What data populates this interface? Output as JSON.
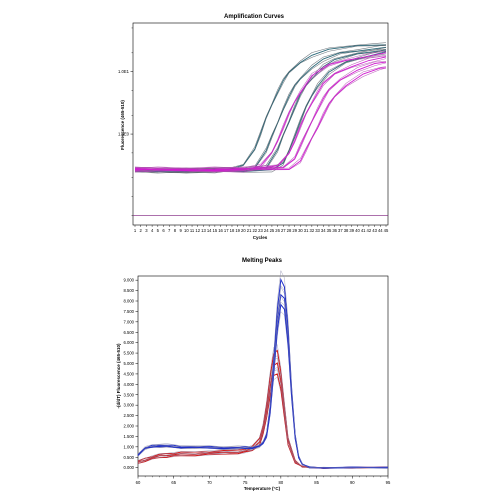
{
  "chart_data": [
    {
      "type": "line",
      "title": "Amplification Curves",
      "xlabel": "Cycles",
      "ylabel": "Fluorescence (465-510)",
      "y_scale": "log",
      "x_tick_labels": [
        "1",
        "2",
        "3",
        "4",
        "5",
        "6",
        "7",
        "8",
        "9",
        "10",
        "11",
        "12",
        "13",
        "14",
        "15",
        "16",
        "17",
        "18",
        "19",
        "20",
        "21",
        "22",
        "23",
        "24",
        "25",
        "26",
        "27",
        "28",
        "29",
        "30",
        "31",
        "32",
        "33",
        "34",
        "35",
        "36",
        "37",
        "38",
        "39",
        "40",
        "41",
        "42",
        "43",
        "44",
        "45"
      ],
      "y_tick_labels": [
        "1.0E1",
        "1.0E0"
      ],
      "threshold": 0.05,
      "series_color_teal": "#2e6a7a",
      "series_color_magenta": "#d21ad2",
      "series_color_grey": "#444444",
      "series": [
        {
          "group": "teal",
          "x": [
            1,
            5,
            10,
            15,
            18,
            20,
            22,
            23,
            24,
            25,
            26,
            27,
            28,
            30,
            32,
            35,
            40,
            45
          ],
          "y": [
            0.26,
            0.26,
            0.26,
            0.26,
            0.27,
            0.32,
            0.6,
            1.0,
            1.8,
            3.0,
            4.8,
            7.0,
            9.6,
            14.5,
            18.5,
            22,
            26,
            28
          ]
        },
        {
          "group": "teal",
          "x": [
            1,
            5,
            10,
            15,
            20,
            22,
            24,
            25,
            26,
            27,
            28,
            29,
            30,
            32,
            34,
            37,
            40,
            45
          ],
          "y": [
            0.26,
            0.26,
            0.26,
            0.26,
            0.27,
            0.3,
            0.55,
            0.9,
            1.5,
            2.6,
            4.0,
            5.8,
            7.8,
            12,
            15.5,
            19.5,
            22,
            25
          ]
        },
        {
          "group": "teal",
          "x": [
            1,
            5,
            10,
            15,
            20,
            24,
            26,
            27,
            28,
            29,
            30,
            31,
            32,
            34,
            36,
            40,
            45
          ],
          "y": [
            0.26,
            0.26,
            0.26,
            0.26,
            0.26,
            0.3,
            0.55,
            0.95,
            1.6,
            2.7,
            4.2,
            6.0,
            8.0,
            12,
            15,
            19.5,
            23
          ]
        },
        {
          "group": "teal",
          "x": [
            1,
            5,
            10,
            15,
            20,
            25,
            27,
            28,
            29,
            30,
            31,
            32,
            33,
            35,
            38,
            41,
            45
          ],
          "y": [
            0.26,
            0.26,
            0.26,
            0.26,
            0.26,
            0.27,
            0.33,
            0.55,
            0.95,
            1.6,
            2.7,
            4.2,
            6.0,
            9.5,
            14,
            17.5,
            21
          ]
        },
        {
          "group": "magenta",
          "x": [
            1,
            5,
            10,
            15,
            20,
            23,
            25,
            26,
            27,
            28,
            29,
            30,
            32,
            35,
            38,
            41,
            45
          ],
          "y": [
            0.27,
            0.27,
            0.27,
            0.26,
            0.27,
            0.3,
            0.5,
            0.8,
            1.3,
            2.1,
            3.3,
            4.8,
            8.5,
            12.5,
            15.5,
            17.5,
            19.5
          ]
        },
        {
          "group": "magenta",
          "x": [
            1,
            5,
            10,
            15,
            20,
            26,
            28,
            29,
            30,
            31,
            32,
            33,
            34,
            36,
            39,
            42,
            45
          ],
          "y": [
            0.27,
            0.27,
            0.27,
            0.27,
            0.27,
            0.3,
            0.5,
            0.8,
            1.3,
            2.1,
            3.2,
            4.6,
            6.2,
            9.2,
            12.5,
            15,
            16.5
          ]
        },
        {
          "group": "magenta",
          "x": [
            1,
            5,
            10,
            15,
            20,
            27,
            29,
            30,
            31,
            32,
            33,
            34,
            35,
            37,
            40,
            43,
            45
          ],
          "y": [
            0.27,
            0.27,
            0.27,
            0.27,
            0.27,
            0.29,
            0.42,
            0.65,
            1.0,
            1.6,
            2.5,
            3.6,
            5.0,
            7.6,
            10.8,
            13,
            14
          ]
        },
        {
          "group": "magenta",
          "x": [
            1,
            5,
            10,
            15,
            20,
            28,
            30,
            31,
            32,
            33,
            34,
            35,
            36,
            38,
            41,
            44,
            45
          ],
          "y": [
            0.27,
            0.27,
            0.27,
            0.27,
            0.27,
            0.28,
            0.38,
            0.55,
            0.85,
            1.3,
            2.0,
            2.9,
            4.0,
            6.2,
            9.0,
            11,
            11.8
          ]
        }
      ]
    },
    {
      "type": "line",
      "title": "Melting Peaks",
      "xlabel": "Temperature (°C)",
      "ylabel": "-(d/dT) Fluorescence (465-510)",
      "x_tick_labels": [
        "60",
        "65",
        "70",
        "75",
        "80",
        "85",
        "90",
        "95"
      ],
      "y_tick_labels": [
        "0.000",
        "0.500",
        "1.000",
        "1.500",
        "2.000",
        "2.500",
        "3.000",
        "3.500",
        "4.000",
        "4.500",
        "5.000",
        "5.500",
        "6.000",
        "6.500",
        "7.000",
        "7.500",
        "8.000",
        "8.500",
        "9.000"
      ],
      "xlim": [
        60,
        95
      ],
      "ylim": [
        -0.4,
        9.2
      ],
      "series_color_blue": "#1f2fc8",
      "series_color_red": "#d01818",
      "series_color_grey": "#8888aa",
      "series": [
        {
          "group": "blue",
          "x": [
            60,
            61,
            62,
            63,
            64,
            65,
            66,
            68,
            70,
            72,
            74,
            75,
            76,
            77,
            77.5,
            78,
            78.5,
            79,
            79.5,
            80,
            80.5,
            81,
            81.5,
            82,
            82.5,
            83,
            84,
            86,
            90,
            95
          ],
          "y": [
            0.65,
            0.95,
            1.05,
            1.1,
            1.08,
            1.05,
            1.03,
            1.0,
            1.0,
            0.98,
            0.98,
            0.98,
            0.98,
            1.05,
            1.2,
            1.6,
            2.8,
            4.8,
            7.0,
            8.3,
            8.1,
            6.3,
            3.6,
            1.5,
            0.5,
            0.15,
            0.02,
            0.0,
            0.0,
            0.0
          ]
        },
        {
          "group": "blue",
          "x": [
            60,
            61,
            62,
            63,
            64,
            65,
            66,
            68,
            70,
            72,
            74,
            75,
            76,
            77,
            77.5,
            78,
            78.5,
            79,
            79.5,
            80,
            80.5,
            81,
            81.5,
            82,
            82.5,
            83,
            84,
            86,
            90,
            95
          ],
          "y": [
            0.6,
            0.9,
            1.0,
            1.02,
            1.0,
            0.98,
            0.97,
            0.95,
            0.95,
            0.93,
            0.93,
            0.93,
            0.93,
            1.0,
            1.15,
            1.5,
            2.6,
            4.5,
            6.6,
            7.8,
            7.6,
            6.0,
            3.4,
            1.4,
            0.5,
            0.15,
            0.02,
            0.0,
            0.0,
            0.0
          ]
        },
        {
          "group": "blue",
          "x": [
            60,
            61,
            62,
            63,
            64,
            65,
            66,
            68,
            70,
            72,
            74,
            75,
            76,
            77,
            77.5,
            78,
            78.5,
            79,
            79.5,
            80,
            80.5,
            81,
            81.5,
            82,
            82.5,
            83,
            84,
            86,
            90,
            95
          ],
          "y": [
            0.62,
            0.92,
            1.0,
            1.05,
            1.02,
            1.0,
            0.98,
            0.96,
            0.96,
            0.94,
            0.94,
            0.94,
            0.95,
            1.02,
            1.2,
            1.6,
            2.9,
            5.2,
            7.6,
            9.0,
            8.7,
            6.8,
            3.8,
            1.6,
            0.55,
            0.15,
            0.02,
            0.0,
            0.0,
            0.0
          ]
        },
        {
          "group": "red",
          "x": [
            60,
            61,
            62,
            63,
            64,
            65,
            66,
            68,
            70,
            72,
            74,
            75,
            76,
            77,
            77.5,
            78,
            78.5,
            79,
            79.5,
            80,
            80.5,
            81,
            82,
            83,
            84,
            86,
            90,
            95
          ],
          "y": [
            0.3,
            0.45,
            0.55,
            0.62,
            0.68,
            0.7,
            0.72,
            0.75,
            0.78,
            0.8,
            0.85,
            0.9,
            1.0,
            1.4,
            2.0,
            3.0,
            4.4,
            5.5,
            5.6,
            4.6,
            3.0,
            1.4,
            0.35,
            0.05,
            0.0,
            0.0,
            0.0,
            0.0
          ]
        },
        {
          "group": "red",
          "x": [
            60,
            61,
            62,
            63,
            64,
            65,
            66,
            68,
            70,
            72,
            74,
            75,
            76,
            77,
            77.5,
            78,
            78.5,
            79,
            79.5,
            80,
            80.5,
            81,
            82,
            83,
            84,
            86,
            90,
            95
          ],
          "y": [
            0.25,
            0.38,
            0.48,
            0.55,
            0.6,
            0.62,
            0.64,
            0.67,
            0.7,
            0.72,
            0.76,
            0.8,
            0.9,
            1.25,
            1.8,
            2.7,
            3.9,
            4.9,
            5.0,
            4.2,
            2.7,
            1.3,
            0.3,
            0.05,
            0.0,
            0.0,
            0.0,
            0.0
          ]
        },
        {
          "group": "red",
          "x": [
            60,
            61,
            62,
            63,
            64,
            65,
            66,
            68,
            70,
            72,
            74,
            75,
            76,
            77,
            77.5,
            78,
            78.5,
            79,
            79.5,
            80,
            80.5,
            81,
            82,
            83,
            84,
            86,
            90,
            95
          ],
          "y": [
            0.2,
            0.32,
            0.42,
            0.48,
            0.52,
            0.55,
            0.57,
            0.6,
            0.63,
            0.65,
            0.7,
            0.74,
            0.82,
            1.1,
            1.6,
            2.4,
            3.5,
            4.4,
            4.5,
            3.8,
            2.4,
            1.1,
            0.25,
            0.04,
            0.0,
            0.0,
            0.0,
            0.0
          ]
        }
      ]
    }
  ]
}
